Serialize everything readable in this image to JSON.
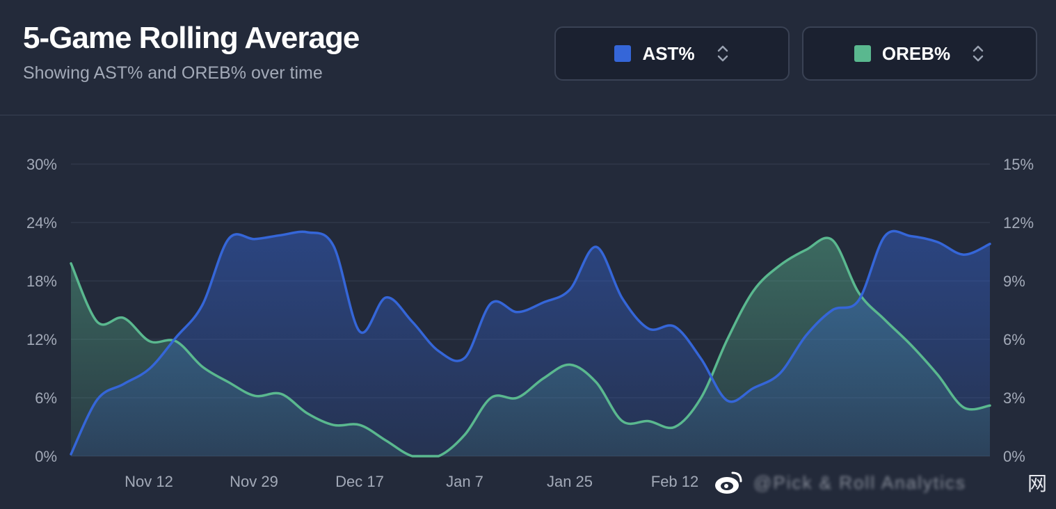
{
  "header": {
    "title": "5-Game Rolling Average",
    "subtitle": "Showing AST% and OREB% over time"
  },
  "selectors": [
    {
      "label": "AST%",
      "color": "#3566d8"
    },
    {
      "label": "OREB%",
      "color": "#5ab88f"
    }
  ],
  "watermark": {
    "text": "@Pick & Roll Analytics",
    "site": "网"
  },
  "chart_data": {
    "type": "area",
    "title": "5-Game Rolling Average",
    "x_tick_labels": [
      "Nov 12",
      "Nov 29",
      "Dec 17",
      "Jan 7",
      "Jan 25",
      "Feb 12"
    ],
    "left_axis": {
      "ticks": [
        "0%",
        "6%",
        "12%",
        "18%",
        "24%",
        "30%"
      ],
      "ylim": [
        0,
        30
      ]
    },
    "right_axis": {
      "ticks": [
        "0%",
        "3%",
        "6%",
        "9%",
        "12%",
        "15%"
      ],
      "ylim": [
        0,
        15
      ]
    },
    "grid": true,
    "series": [
      {
        "name": "AST%",
        "axis": "left",
        "color": "#3566d8",
        "values": [
          0.2,
          5.8,
          7.4,
          9.0,
          12.2,
          15.5,
          22.3,
          22.3,
          22.7,
          23.0,
          21.6,
          12.8,
          16.3,
          13.8,
          10.8,
          10.1,
          15.7,
          14.8,
          15.8,
          17.1,
          21.5,
          16.2,
          13.1,
          13.3,
          10.0,
          5.7,
          7.0,
          8.5,
          12.4,
          15.0,
          16.0,
          22.6,
          22.6,
          22.0,
          20.7,
          21.8
        ]
      },
      {
        "name": "OREB%",
        "axis": "right",
        "color": "#5ab88f",
        "values": [
          9.9,
          6.9,
          7.1,
          5.9,
          5.9,
          4.6,
          3.8,
          3.1,
          3.2,
          2.2,
          1.6,
          1.6,
          0.8,
          0.0,
          0.0,
          1.1,
          3.0,
          3.0,
          4.0,
          4.7,
          3.8,
          1.8,
          1.8,
          1.5,
          3.0,
          6.0,
          8.5,
          9.8,
          10.6,
          11.1,
          8.4,
          7.0,
          5.7,
          4.2,
          2.5,
          2.6
        ]
      }
    ]
  }
}
